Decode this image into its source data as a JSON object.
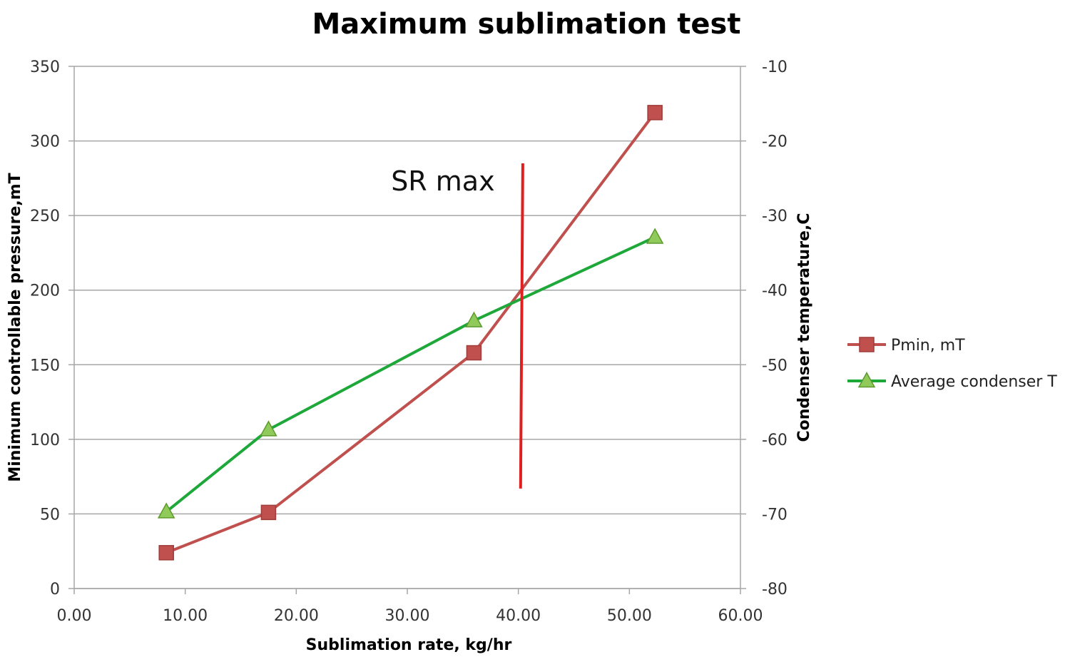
{
  "chart_data": {
    "type": "line",
    "title": "Maximum sublimation test",
    "xlabel": "Sublimation rate, kg/hr",
    "ylabel": "Minimum controllable pressure,mT",
    "y2label": "Condenser temperature,C",
    "xlim": [
      0,
      60
    ],
    "ylim": [
      0,
      350
    ],
    "y2lim": [
      -80,
      -10
    ],
    "x_ticks": [
      "0.00",
      "10.00",
      "20.00",
      "30.00",
      "40.00",
      "50.00",
      "60.00"
    ],
    "y_ticks": [
      "0",
      "50",
      "100",
      "150",
      "200",
      "250",
      "300",
      "350"
    ],
    "y2_ticks": [
      "-80",
      "-70",
      "-60",
      "-50",
      "-40",
      "-30",
      "-20",
      "-10"
    ],
    "grid": "horizontal",
    "legend_position": "right",
    "series": [
      {
        "name": "Pmin, mT",
        "axis": "left",
        "marker": "square",
        "color": "#c0504d",
        "marker_edge": "#a03c3a",
        "x": [
          8.3,
          17.5,
          36.0,
          52.3
        ],
        "y": [
          24,
          51,
          158,
          319
        ]
      },
      {
        "name": "Average condenser T",
        "axis": "right",
        "marker": "triangle",
        "color": "#1fa83a",
        "marker_fill": "#8fca5a",
        "marker_edge": "#5d9a2e",
        "x": [
          8.3,
          17.5,
          36.0,
          52.3
        ],
        "y": [
          -69.7,
          -58.7,
          -44.1,
          -32.9
        ]
      }
    ],
    "annotations": [
      {
        "text": "SR max",
        "type": "vertical-line",
        "color": "#e02020",
        "x_top": 40.4,
        "x_bottom": 40.2,
        "y_top": 285,
        "y_bottom": 67
      }
    ]
  }
}
